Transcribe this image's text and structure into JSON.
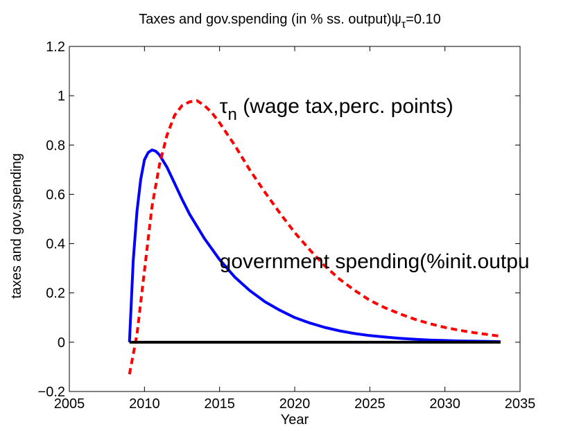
{
  "chart_data": {
    "type": "line",
    "title": "Taxes and gov.spending (in % ss. output)",
    "title_symbol": "ψ",
    "title_subscript": "τ",
    "title_value": "=0.10",
    "xlabel": "Year",
    "ylabel": "taxes and gov.spending",
    "xlim": [
      2005,
      2035
    ],
    "ylim": [
      -0.2,
      1.2
    ],
    "xticks": [
      2005,
      2010,
      2015,
      2020,
      2025,
      2030,
      2035
    ],
    "yticks": [
      -0.2,
      0,
      0.2,
      0.4,
      0.6,
      0.8,
      1,
      1.2
    ],
    "ytick_labels": [
      "−0.2",
      "0",
      "0.2",
      "0.4",
      "0.6",
      "0.8",
      "1",
      "1.2"
    ],
    "grid": false,
    "annotations": [
      {
        "symbol": "τ",
        "subscript": "n",
        "text": " (wage tax,perc. points)",
        "x": 2015.0,
        "y": 0.93
      },
      {
        "text": "government spending(%init.outpu",
        "x": 2015.0,
        "y": 0.3
      }
    ],
    "series": [
      {
        "color": "#0000ff",
        "style": "solid",
        "x": [
          2009.0,
          2009.25,
          2009.5,
          2009.75,
          2010.0,
          2010.25,
          2010.5,
          2010.75,
          2011.0,
          2011.5,
          2012.0,
          2012.5,
          2013.0,
          2014.0,
          2015.0,
          2016.0,
          2017.0,
          2018.0,
          2019.0,
          2020.0,
          2021.0,
          2022.0,
          2023.0,
          2024.0,
          2025.0,
          2026.0,
          2027.0,
          2028.0,
          2029.0,
          2030.0,
          2031.0,
          2032.0,
          2033.0,
          2033.7
        ],
        "values": [
          0.0,
          0.33,
          0.53,
          0.66,
          0.74,
          0.77,
          0.78,
          0.775,
          0.76,
          0.71,
          0.645,
          0.58,
          0.52,
          0.42,
          0.335,
          0.265,
          0.21,
          0.165,
          0.13,
          0.1,
          0.078,
          0.06,
          0.046,
          0.035,
          0.027,
          0.021,
          0.016,
          0.012,
          0.009,
          0.007,
          0.005,
          0.004,
          0.003,
          0.002
        ]
      },
      {
        "color": "#ff0000",
        "style": "dashed",
        "x": [
          2009.0,
          2009.5,
          2010.0,
          2010.5,
          2011.0,
          2011.5,
          2012.0,
          2012.5,
          2013.0,
          2013.5,
          2014.0,
          2014.5,
          2015.0,
          2016.0,
          2017.0,
          2018.0,
          2019.0,
          2020.0,
          2021.0,
          2022.0,
          2023.0,
          2024.0,
          2025.0,
          2026.0,
          2027.0,
          2028.0,
          2029.0,
          2030.0,
          2031.0,
          2032.0,
          2033.0,
          2033.7
        ],
        "values": [
          -0.13,
          0.03,
          0.29,
          0.55,
          0.72,
          0.84,
          0.92,
          0.96,
          0.975,
          0.98,
          0.96,
          0.93,
          0.89,
          0.8,
          0.7,
          0.61,
          0.525,
          0.445,
          0.375,
          0.31,
          0.255,
          0.21,
          0.17,
          0.14,
          0.115,
          0.093,
          0.075,
          0.06,
          0.048,
          0.038,
          0.03,
          0.024
        ]
      },
      {
        "color": "#000000",
        "style": "solid",
        "x": [
          2009.0,
          2033.7
        ],
        "values": [
          0.0,
          0.0
        ]
      }
    ]
  }
}
